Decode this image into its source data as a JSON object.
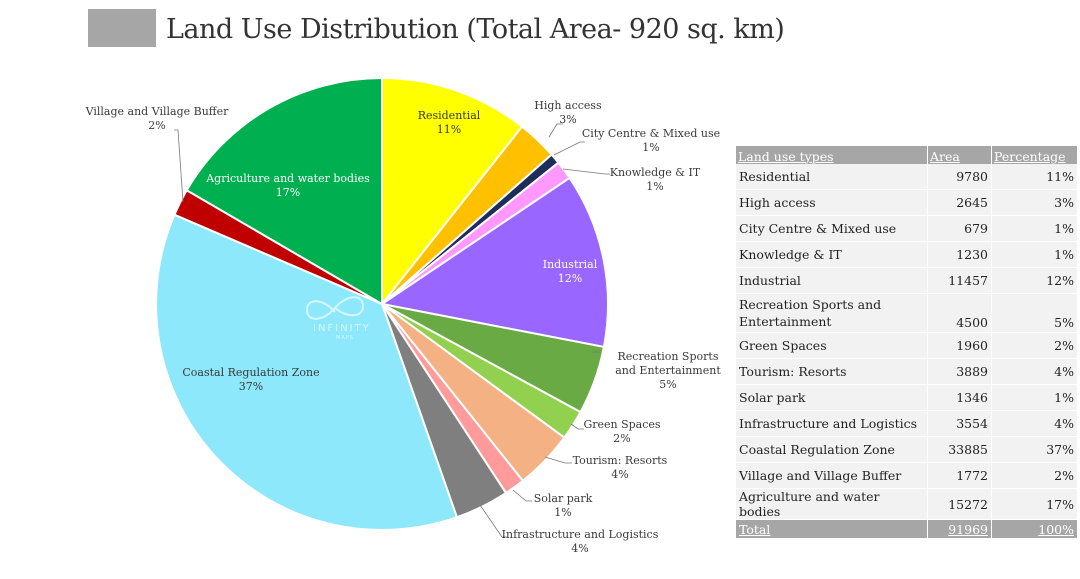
{
  "title": "Land Use Distribution (Total Area- 920 sq. km)",
  "watermark": {
    "text": "INFINITY",
    "sub": "MAPS"
  },
  "chart_data": {
    "type": "pie",
    "title": "Land Use Distribution (Total Area- 920 sq. km)",
    "slices": [
      {
        "name": "Residential",
        "percent": 11,
        "value": 9780,
        "color": "#ffff00"
      },
      {
        "name": "High access",
        "percent": 3,
        "value": 2645,
        "color": "#ffc000"
      },
      {
        "name": "City Centre & Mixed use",
        "percent": 1,
        "value": 679,
        "color": "#1f2d5a"
      },
      {
        "name": "Knowledge & IT",
        "percent": 1,
        "value": 1230,
        "color": "#ff99ff"
      },
      {
        "name": "Industrial",
        "percent": 12,
        "value": 11457,
        "color": "#9966ff"
      },
      {
        "name": "Recreation Sports and Entertainment",
        "percent": 5,
        "value": 4500,
        "color": "#6aaa45"
      },
      {
        "name": "Green Spaces",
        "percent": 2,
        "value": 1960,
        "color": "#92d050"
      },
      {
        "name": "Tourism: Resorts",
        "percent": 4,
        "value": 3889,
        "color": "#f4b183"
      },
      {
        "name": "Solar park",
        "percent": 1,
        "value": 1346,
        "color": "#ff9b9b"
      },
      {
        "name": "Infrastructure and Logistics",
        "percent": 4,
        "value": 3554,
        "color": "#7f7f7f"
      },
      {
        "name": "Coastal Regulation Zone",
        "percent": 37,
        "value": 33885,
        "color": "#8de8fb"
      },
      {
        "name": "Village and Village Buffer",
        "percent": 2,
        "value": 1772,
        "color": "#c00000"
      },
      {
        "name": "Agriculture and water bodies",
        "percent": 17,
        "value": 15272,
        "color": "#00b050"
      }
    ]
  },
  "table": {
    "headers": [
      "Land use types",
      "Area",
      "Percentage"
    ],
    "rows": [
      [
        "Residential",
        "9780",
        "11%"
      ],
      [
        "High access",
        "2645",
        "3%"
      ],
      [
        "City Centre & Mixed use",
        "679",
        "1%"
      ],
      [
        "Knowledge & IT",
        "1230",
        "1%"
      ],
      [
        "Industrial",
        "11457",
        "12%"
      ],
      [
        "Recreation Sports and Entertainment",
        "4500",
        "5%"
      ],
      [
        "Green Spaces",
        "1960",
        "2%"
      ],
      [
        "Tourism: Resorts",
        "3889",
        "4%"
      ],
      [
        "Solar park",
        "1346",
        "1%"
      ],
      [
        "Infrastructure and Logistics",
        "3554",
        "4%"
      ],
      [
        "Coastal Regulation Zone",
        "33885",
        "37%"
      ],
      [
        "Village and Village Buffer",
        "1772",
        "2%"
      ],
      [
        "Agriculture and water bodies",
        "15272",
        "17%"
      ]
    ],
    "total": [
      "Total",
      "91969",
      "100%"
    ]
  }
}
